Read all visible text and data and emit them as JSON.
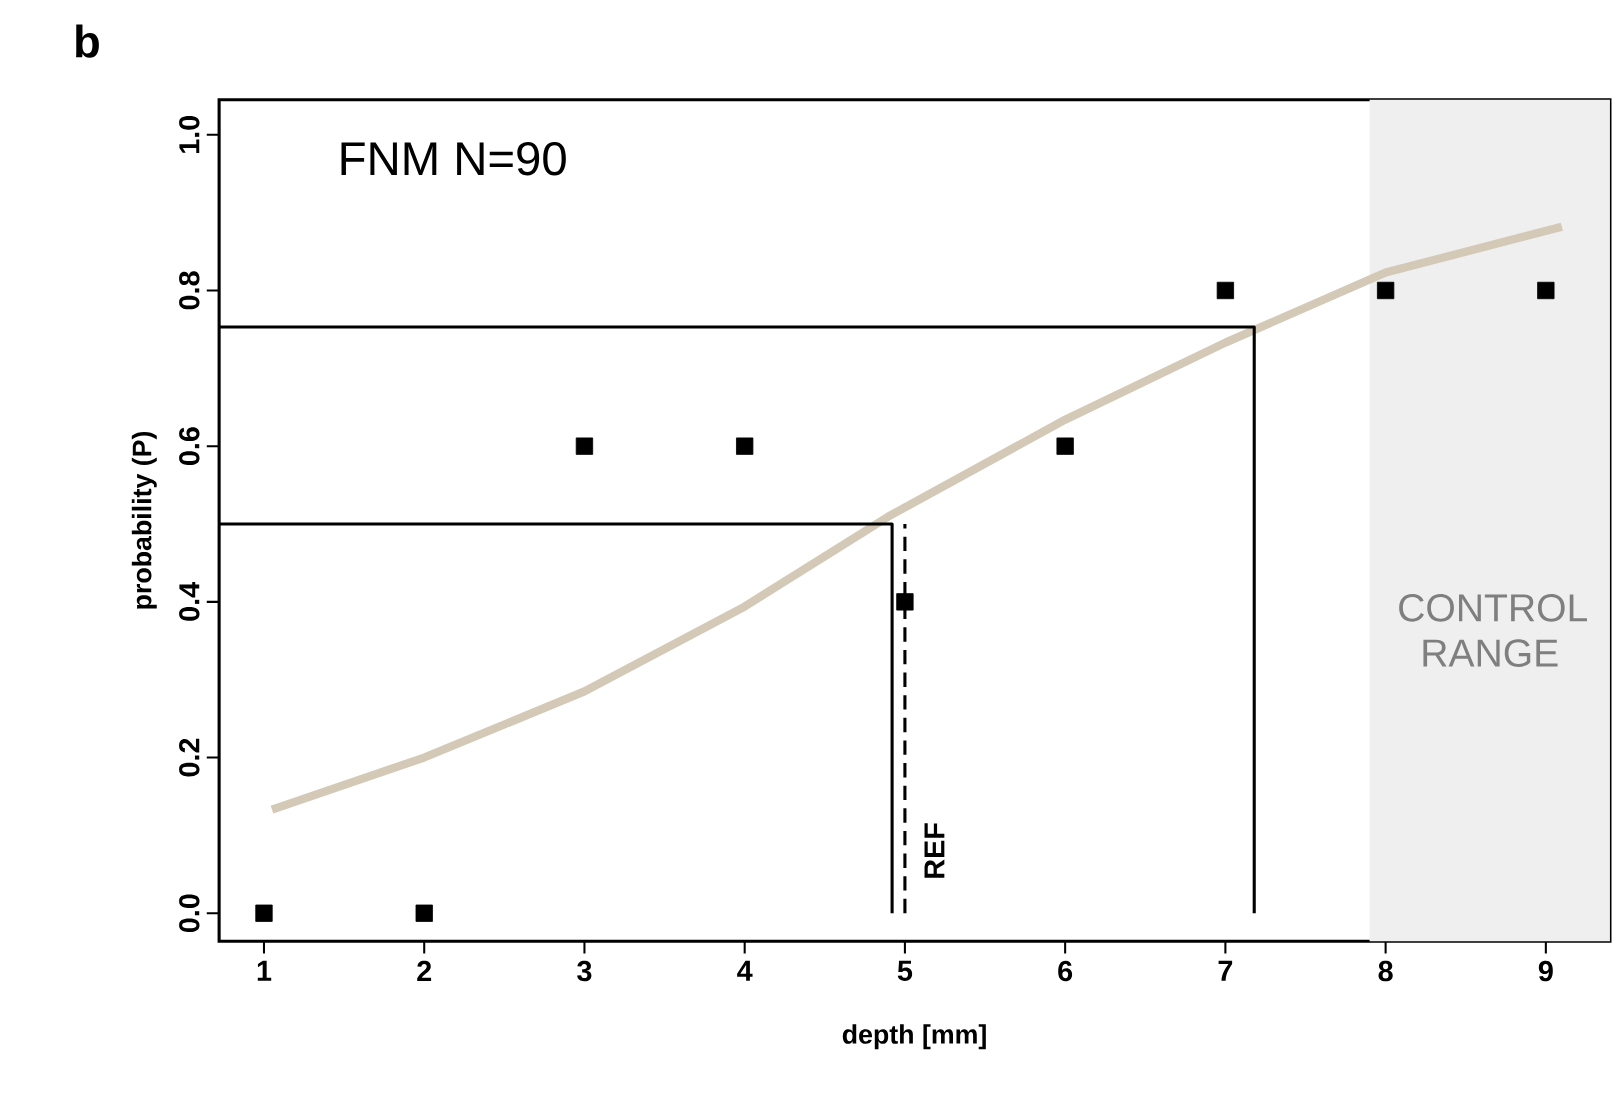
{
  "chart_data": {
    "type": "scatter",
    "title": "b",
    "xlabel": "depth [mm]",
    "ylabel": "probability (P)",
    "xlim": [
      0.72,
      9.4
    ],
    "ylim": [
      -0.036,
      1.045
    ],
    "xticks": [
      1,
      2,
      3,
      4,
      5,
      6,
      7,
      8,
      9
    ],
    "yticks": [
      {
        "value": 0,
        "label": "0.0"
      },
      {
        "value": 0.2,
        "label": "0.2"
      },
      {
        "value": 0.4,
        "label": "0.4"
      },
      {
        "value": 0.6,
        "label": "0.6"
      },
      {
        "value": 0.8,
        "label": "0.8"
      },
      {
        "value": 1,
        "label": "1.0"
      }
    ],
    "grid": false,
    "series": [
      {
        "type": "line",
        "color": "#d3c9b6",
        "x": [
          1.05,
          2,
          3,
          4,
          4.9,
          6,
          7,
          8,
          9.1
        ],
        "values": [
          0.133,
          0.2,
          0.285,
          0.394,
          0.51,
          0.634,
          0.733,
          0.823,
          0.882
        ],
        "marker": "none",
        "line_style": "solid"
      },
      {
        "type": "line",
        "color": "#000000",
        "x": [
          0.72,
          4.92,
          4.92
        ],
        "values": [
          0.5,
          0.5,
          0
        ],
        "marker": "none",
        "line_style": "solid"
      },
      {
        "type": "line",
        "color": "#000000",
        "x": [
          0.72,
          7.18,
          7.18
        ],
        "values": [
          0.753,
          0.753,
          0
        ],
        "marker": "none",
        "line_style": "solid"
      },
      {
        "type": "line",
        "color": "#000000",
        "x": [
          5,
          5
        ],
        "values": [
          0,
          0.5
        ],
        "marker": "none",
        "line_style": "dashed"
      },
      {
        "color": "#000000",
        "x": [
          1,
          2,
          3,
          4,
          5,
          6,
          7,
          8,
          9
        ],
        "values": [
          0,
          0,
          0.6,
          0.6,
          0.4,
          0.6,
          0.8,
          0.8,
          0.8
        ],
        "marker": "square"
      }
    ],
    "bands": [
      {
        "axis": "x",
        "from": 7.9,
        "to": 9.4,
        "label": "CONTROL RANGE",
        "color": "#efefef"
      }
    ],
    "annotations": [
      "FNM N=90",
      {
        "text": "REF",
        "x": 5,
        "y": 0.08
      }
    ]
  }
}
